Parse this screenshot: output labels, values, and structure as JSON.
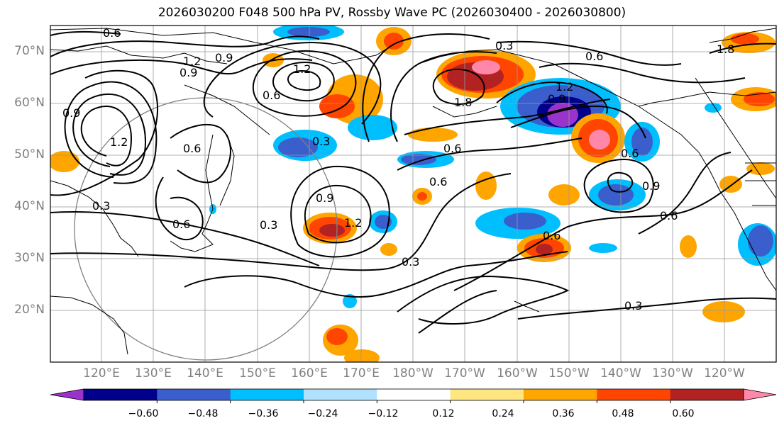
{
  "title": "2026030200 F048 500 hPa PV, Rossby Wave PC (2026030400 - 2026030800)",
  "lat_labels": [
    "70°N",
    "60°N",
    "50°N",
    "40°N",
    "30°N",
    "20°N"
  ],
  "lon_labels": [
    "120°E",
    "130°E",
    "140°E",
    "150°E",
    "160°E",
    "170°E",
    "180°W",
    "170°W",
    "160°W",
    "150°W",
    "140°W",
    "130°W",
    "120°W"
  ],
  "colorbar": {
    "ticks": [
      "−0.60",
      "−0.48",
      "−0.36",
      "−0.24",
      "−0.12",
      "0.12",
      "0.24",
      "0.36",
      "0.48",
      "0.60"
    ],
    "colors": [
      "#9933cc",
      "#00008b",
      "#3a5fcd",
      "#00bfff",
      "#b0e2ff",
      "#ffffff",
      "#ffe680",
      "#ffa500",
      "#ff4500",
      "#b22222",
      "#ff88aa"
    ]
  },
  "contour_labels": [
    "0.6",
    "1.2",
    "0.9",
    "0.9",
    "1.2",
    "0.6",
    "0.9",
    "1.2",
    "0.6",
    "0.3",
    "0.3",
    "0.9",
    "1.2",
    "0.6",
    "0.6",
    "0.3",
    "0.3",
    "0.6",
    "1.8",
    "0.3",
    "1.2",
    "0.9",
    "0.6",
    "0.6",
    "0.6",
    "0.9",
    "0.6",
    "1.8",
    "0.3"
  ]
}
